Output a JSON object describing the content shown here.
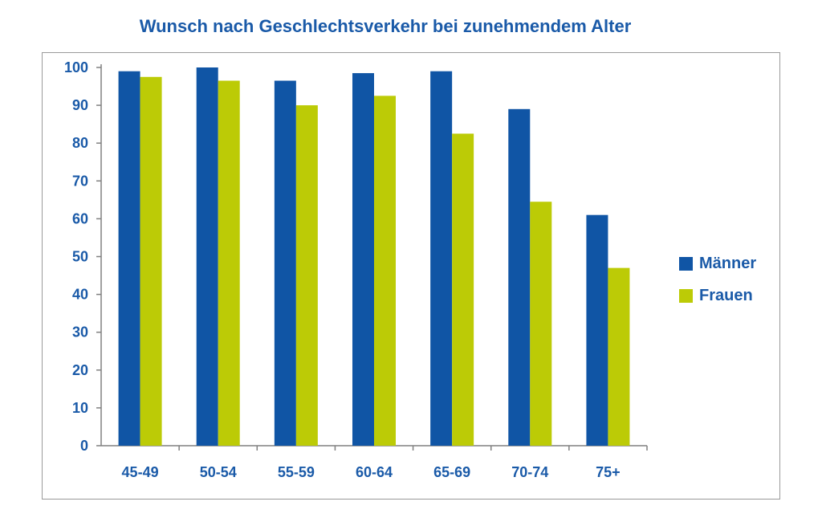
{
  "chart_data": {
    "type": "bar",
    "title": "Wunsch nach Geschlechtsverkehr bei zunehmendem Alter",
    "xlabel": "",
    "ylabel": "",
    "categories": [
      "45-49",
      "50-54",
      "55-59",
      "60-64",
      "65-69",
      "70-74",
      "75+"
    ],
    "series": [
      {
        "name": "Männer",
        "color": "#1055a5",
        "values": [
          99,
          100,
          96.5,
          98.5,
          99,
          89,
          61
        ]
      },
      {
        "name": "Frauen",
        "color": "#bccb06",
        "values": [
          97.5,
          96.5,
          90,
          92.5,
          82.5,
          64.5,
          47
        ]
      }
    ],
    "ylim": [
      0,
      100
    ],
    "yticks": [
      0,
      10,
      20,
      30,
      40,
      50,
      60,
      70,
      80,
      90,
      100
    ],
    "grid": false,
    "legend": "right"
  }
}
